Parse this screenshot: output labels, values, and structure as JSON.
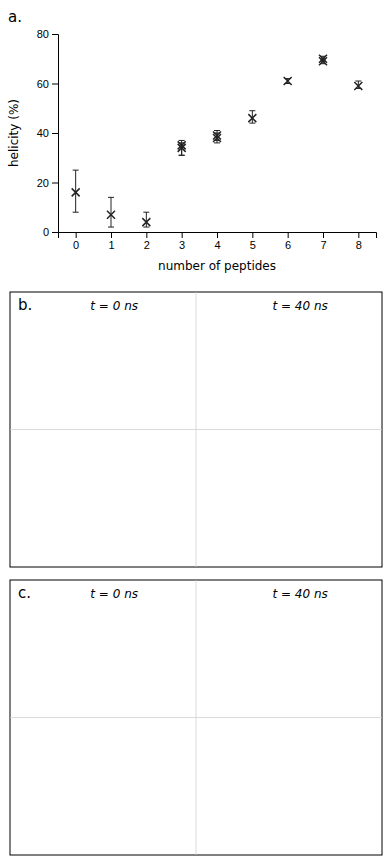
{
  "chart_data": [
    {
      "type": "scatter",
      "title": "a.",
      "x_label": "number of peptides",
      "y_label": "helicity (%)",
      "x": [
        0,
        1,
        2,
        3,
        3,
        4,
        4,
        5,
        6,
        7,
        7,
        8
      ],
      "values": [
        16,
        7,
        4,
        34,
        35,
        38,
        39,
        46,
        61,
        69,
        70,
        59
      ],
      "error_low": [
        8,
        5,
        2,
        3,
        4,
        2,
        2,
        2,
        1,
        1,
        1,
        1
      ],
      "error_high": [
        9,
        7,
        4,
        2,
        2,
        2,
        2,
        3,
        1,
        1,
        1,
        2
      ],
      "xlim": [
        -0.5,
        8.5
      ],
      "xticks": [
        0,
        1,
        2,
        3,
        4,
        5,
        6,
        7,
        8
      ],
      "ylim": [
        0,
        80
      ],
      "yticks": [
        0,
        20,
        40,
        60,
        80
      ],
      "marker": "x",
      "color": "#222222",
      "grid": false
    },
    {
      "type": "panel",
      "title": "b.",
      "annotations": [
        "t = 0 ns",
        "t = 40 ns"
      ],
      "color": "#000000"
    },
    {
      "type": "panel",
      "title": "c.",
      "annotations": [
        "t = 0 ns",
        "t = 40 ns"
      ],
      "color": "#000000"
    }
  ]
}
